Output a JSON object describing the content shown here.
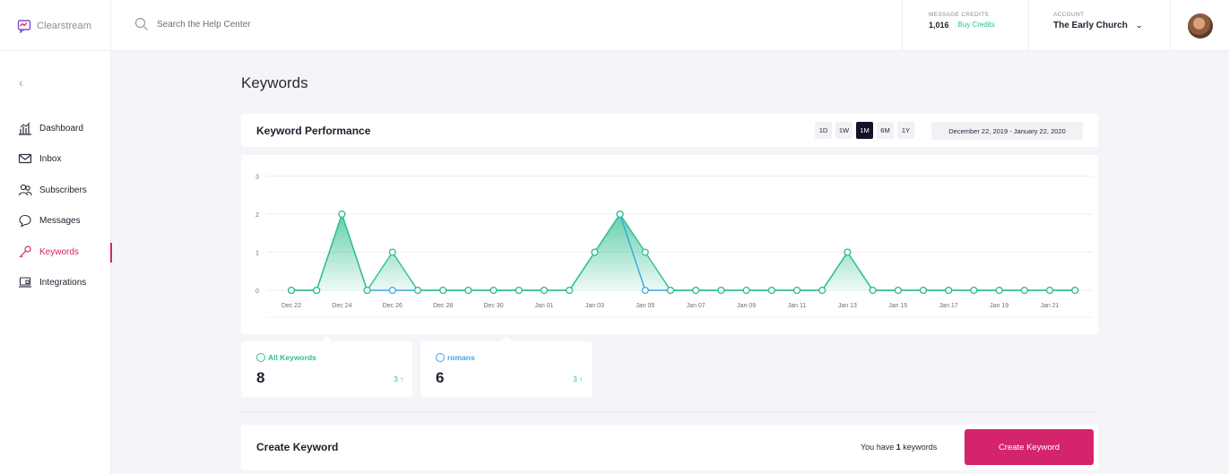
{
  "brand": {
    "name": "Clearstream",
    "accent": "#d4246b",
    "green": "#2ebf8f",
    "blue": "#3aa7e0"
  },
  "search": {
    "placeholder": "Search the Help Center"
  },
  "credits": {
    "label": "MESSAGE CREDITS",
    "value": "1,016",
    "buy_label": "Buy Credits"
  },
  "account": {
    "label": "ACCOUNT",
    "name": "The Early Church"
  },
  "sidebar": {
    "items": [
      {
        "label": "Dashboard",
        "icon": "bar-chart-icon"
      },
      {
        "label": "Inbox",
        "icon": "envelope-icon"
      },
      {
        "label": "Subscribers",
        "icon": "people-icon"
      },
      {
        "label": "Messages",
        "icon": "chat-bubbles-icon"
      },
      {
        "label": "Keywords",
        "icon": "key-icon",
        "active": true
      },
      {
        "label": "Integrations",
        "icon": "laptop-icon"
      }
    ]
  },
  "page": {
    "title": "Keywords"
  },
  "performance": {
    "title": "Keyword Performance",
    "ranges": [
      "1D",
      "1W",
      "1M",
      "6M",
      "1Y"
    ],
    "active_range": "1M",
    "date_range": "December 22, 2019 - January 22, 2020"
  },
  "chart_data": {
    "type": "area",
    "x_ticks": [
      "Dec 22",
      "Dec 24",
      "Dec 26",
      "Dec 28",
      "Dec 30",
      "Jan 01",
      "Jan 03",
      "Jan 05",
      "Jan 07",
      "Jan 09",
      "Jan 11",
      "Jan 13",
      "Jan 15",
      "Jan 17",
      "Jan 19",
      "Jan 21"
    ],
    "y_ticks": [
      "0",
      "1",
      "2",
      "3"
    ],
    "ylim": [
      0,
      3
    ],
    "grid": true,
    "series": [
      {
        "name": "All Keywords",
        "color": "#2ebf8f",
        "values": [
          0,
          0,
          2,
          0,
          1,
          0,
          0,
          0,
          0,
          0,
          0,
          0,
          1,
          2,
          1,
          0,
          0,
          0,
          0,
          0,
          0,
          0,
          1,
          0,
          0,
          0,
          0,
          0,
          0,
          0,
          0,
          0
        ]
      },
      {
        "name": "romans",
        "color": "#3aa7e0",
        "values": [
          0,
          0,
          2,
          0,
          0,
          0,
          0,
          0,
          0,
          0,
          0,
          0,
          1,
          2,
          0,
          0,
          0,
          0,
          0,
          0,
          0,
          0,
          1,
          0,
          0,
          0,
          0,
          0,
          0,
          0,
          0,
          0
        ]
      }
    ]
  },
  "stats": [
    {
      "label": "All Keywords",
      "value": "8",
      "change": "3 ↑",
      "color": "#2ebf8f"
    },
    {
      "label": "romans",
      "value": "6",
      "change": "3 ↑",
      "color": "#3aa7e0"
    }
  ],
  "create": {
    "title": "Create Keyword",
    "have_prefix": "You have",
    "have_count": "1",
    "have_suffix": "keywords",
    "button_label": "Create Keyword"
  }
}
